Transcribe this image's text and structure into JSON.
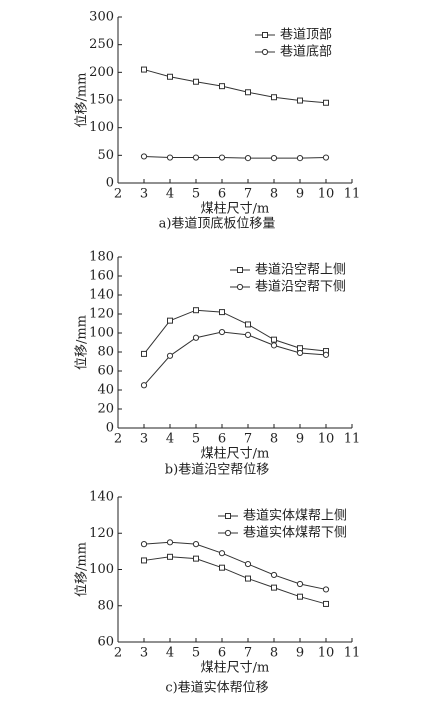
{
  "chart_data": [
    {
      "type": "line",
      "caption": "a)巷道顶底板位移量",
      "x_label": "煤柱尺寸/m",
      "y_label": "位移/mm",
      "x": [
        3,
        4,
        5,
        6,
        7,
        8,
        9,
        10
      ],
      "xlim": [
        2,
        11
      ],
      "xticks": [
        2,
        3,
        4,
        5,
        6,
        7,
        8,
        9,
        10,
        11
      ],
      "ylim": [
        0,
        300
      ],
      "yticks": [
        0,
        50,
        100,
        150,
        200,
        250,
        300
      ],
      "series": [
        {
          "name": "巷道顶部",
          "color": "#333333",
          "marker": "square",
          "values": [
            205,
            192,
            183,
            175,
            164,
            155,
            149,
            145
          ]
        },
        {
          "name": "巷道底部",
          "color": "#333333",
          "marker": "circle",
          "values": [
            48,
            46,
            46,
            46,
            45,
            45,
            45,
            46
          ]
        }
      ]
    },
    {
      "type": "line",
      "caption": "b)巷道沿空帮位移",
      "x_label": "煤柱尺寸/m",
      "y_label": "位移/mm",
      "x": [
        3,
        4,
        5,
        6,
        7,
        8,
        9,
        10
      ],
      "xlim": [
        2,
        11
      ],
      "xticks": [
        2,
        3,
        4,
        5,
        6,
        7,
        8,
        9,
        10,
        11
      ],
      "ylim": [
        0,
        180
      ],
      "yticks": [
        0,
        20,
        40,
        60,
        80,
        100,
        120,
        140,
        160,
        180
      ],
      "series": [
        {
          "name": "巷道沿空帮上侧",
          "color": "#333333",
          "marker": "square",
          "values": [
            78,
            113,
            124,
            122,
            109,
            93,
            84,
            81
          ]
        },
        {
          "name": "巷道沿空帮下侧",
          "color": "#333333",
          "marker": "circle",
          "values": [
            45,
            76,
            95,
            101,
            98,
            87,
            79,
            77
          ]
        }
      ]
    },
    {
      "type": "line",
      "caption": "c)巷道实体帮位移",
      "x_label": "煤柱尺寸/m",
      "y_label": "位移/mm",
      "x": [
        3,
        4,
        5,
        6,
        7,
        8,
        9,
        10
      ],
      "xlim": [
        2,
        11
      ],
      "xticks": [
        2,
        3,
        4,
        5,
        6,
        7,
        8,
        9,
        10,
        11
      ],
      "ylim": [
        60,
        140
      ],
      "yticks": [
        60,
        80,
        100,
        120,
        140
      ],
      "series": [
        {
          "name": "巷道实体煤帮上侧",
          "color": "#333333",
          "marker": "square",
          "values": [
            105,
            107,
            106,
            101,
            95,
            90,
            85,
            81
          ]
        },
        {
          "name": "巷道实体煤帮下侧",
          "color": "#333333",
          "marker": "circle",
          "values": [
            114,
            115,
            114,
            109,
            103,
            97,
            92,
            89
          ]
        }
      ]
    }
  ]
}
